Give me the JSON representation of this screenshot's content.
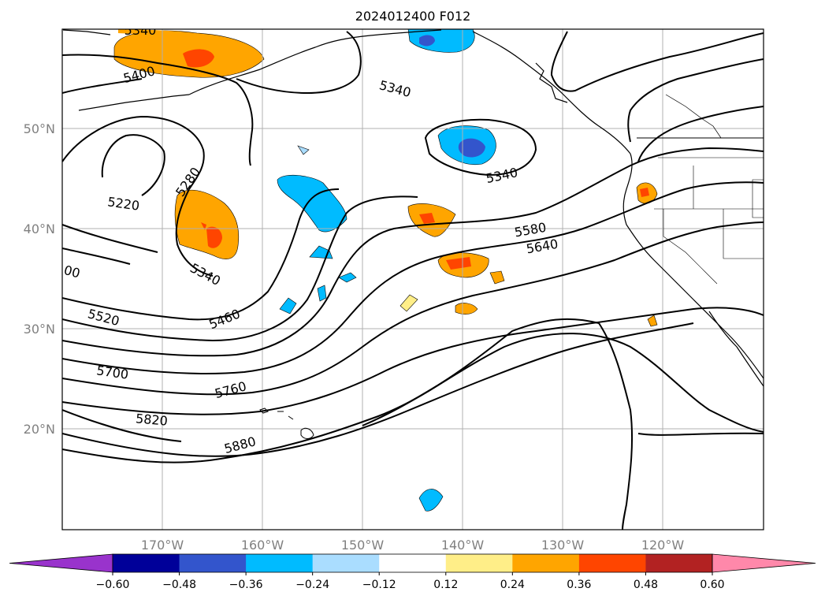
{
  "title": "2024012400 F012",
  "map": {
    "lon_range": [
      -180,
      -110
    ],
    "lat_range": [
      10,
      60
    ],
    "lat_ticks": [
      {
        "value": 50,
        "label": "50°N"
      },
      {
        "value": 40,
        "label": "40°N"
      },
      {
        "value": 30,
        "label": "30°N"
      },
      {
        "value": 20,
        "label": "20°N"
      }
    ],
    "lon_ticks": [
      {
        "value": -170,
        "label": "170°W"
      },
      {
        "value": -160,
        "label": "160°W"
      },
      {
        "value": -150,
        "label": "150°W"
      },
      {
        "value": -140,
        "label": "140°W"
      },
      {
        "value": -130,
        "label": "130°W"
      },
      {
        "value": -120,
        "label": "120°W"
      }
    ],
    "gridlines": true,
    "contour_labels": [
      "5340",
      "5400",
      "5340",
      "5340",
      "5280",
      "5220",
      "5340",
      "5580",
      "5640",
      "00",
      "5460",
      "5520",
      "5700",
      "5760",
      "5820",
      "5880"
    ]
  },
  "colorbar": {
    "ticks": [
      "−0.60",
      "−0.48",
      "−0.36",
      "−0.24",
      "−0.12",
      "0.12",
      "0.24",
      "0.36",
      "0.48",
      "0.60"
    ],
    "colors": {
      "under": "#9933cc",
      "bins": [
        "#000099",
        "#3355cc",
        "#00bbff",
        "#aaddff",
        "#ffffff",
        "#ffee88",
        "#ffa500",
        "#ff4500",
        "#b22222"
      ],
      "over": "#ff88aa"
    }
  }
}
